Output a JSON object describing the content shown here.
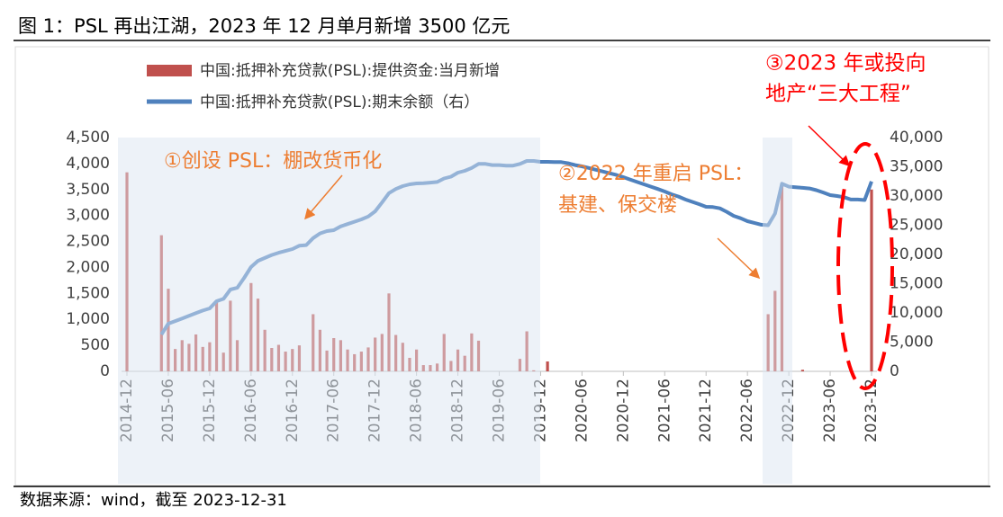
{
  "title": "图 1：PSL 再出江湖，2023 年 12 月单月新增 3500 亿元",
  "source": "数据来源：wind，截至 2023-12-31",
  "chart_data": {
    "type": "bar-line",
    "annotations": [
      "①创设 PSL：棚改货币化",
      "②2022 年重启 PSL：",
      "基建、保交楼",
      "③2023 年或投向",
      "地产“三大工程”"
    ],
    "categories": [
      "2014-12",
      null,
      null,
      null,
      null,
      null,
      "2015-06",
      null,
      null,
      null,
      null,
      null,
      "2015-12",
      null,
      null,
      null,
      null,
      null,
      "2016-06",
      null,
      null,
      null,
      null,
      null,
      "2016-12",
      null,
      null,
      null,
      null,
      null,
      "2017-06",
      null,
      null,
      null,
      null,
      null,
      "2017-12",
      null,
      null,
      null,
      null,
      null,
      "2018-06",
      null,
      null,
      null,
      null,
      null,
      "2018-12",
      null,
      null,
      null,
      null,
      null,
      "2019-06",
      null,
      null,
      null,
      null,
      null,
      "2019-12",
      null,
      null,
      null,
      null,
      null,
      "2020-06",
      null,
      null,
      null,
      null,
      null,
      "2020-12",
      null,
      null,
      null,
      null,
      null,
      "2021-06",
      null,
      null,
      null,
      null,
      null,
      "2021-12",
      null,
      null,
      null,
      null,
      null,
      "2022-06",
      null,
      null,
      null,
      null,
      null,
      "2022-12",
      null,
      null,
      null,
      null,
      null,
      "2023-06",
      null,
      null,
      null,
      null,
      null,
      "2023-12"
    ],
    "series": [
      {
        "name": "中国:抵押补充贷款(PSL):提供资金:当月新增",
        "color": "#c0504d",
        "values": [
          3831,
          0,
          0,
          0,
          0,
          2620,
          1590,
          430,
          600,
          530,
          710,
          470,
          560,
          1330,
          360,
          1360,
          600,
          0,
          1700,
          1400,
          800,
          450,
          510,
          380,
          430,
          500,
          0,
          1100,
          800,
          400,
          640,
          600,
          420,
          330,
          380,
          460,
          650,
          720,
          1500,
          700,
          550,
          260,
          420,
          120,
          120,
          150,
          720,
          200,
          420,
          300,
          730,
          590,
          0,
          0,
          0,
          0,
          0,
          240,
          770,
          20,
          0,
          190,
          0,
          0,
          0,
          0,
          0,
          0,
          0,
          0,
          0,
          0,
          0,
          0,
          0,
          0,
          0,
          0,
          0,
          0,
          0,
          0,
          0,
          0,
          0,
          0,
          0,
          0,
          0,
          0,
          0,
          0,
          0,
          1100,
          1550,
          3600,
          0,
          0,
          30,
          0,
          0,
          0,
          0,
          0,
          0,
          0,
          0,
          0,
          3500
        ]
      },
      {
        "name": "中国:抵押补充贷款(PSL):期末余额（右）",
        "color": "#4f81bd",
        "axis": "y2",
        "values": [
          null,
          null,
          null,
          null,
          null,
          6300,
          8150,
          8600,
          9050,
          9500,
          9950,
          10400,
          10770,
          12000,
          12400,
          14000,
          14300,
          16000,
          17850,
          18900,
          19400,
          19900,
          20300,
          20600,
          20920,
          21500,
          21600,
          22800,
          23600,
          24000,
          24150,
          24800,
          25200,
          25600,
          26000,
          26500,
          27380,
          28900,
          30500,
          31200,
          31700,
          32000,
          32150,
          32200,
          32300,
          32400,
          33000,
          33300,
          34000,
          34300,
          34800,
          35500,
          35500,
          35300,
          35300,
          35200,
          35200,
          35500,
          36000,
          36000,
          35850,
          35850,
          35800,
          35800,
          35600,
          35300,
          35080,
          34800,
          34500,
          34200,
          33900,
          33600,
          33230,
          32800,
          32400,
          32000,
          31600,
          31200,
          30770,
          30300,
          29900,
          29400,
          29000,
          28600,
          28150,
          28100,
          27900,
          27300,
          26600,
          26200,
          25700,
          25400,
          25100,
          25000,
          27000,
          32100,
          31600,
          31500,
          31400,
          31300,
          31000,
          30600,
          30150,
          30000,
          29800,
          29400,
          29400,
          29300,
          32500
        ]
      }
    ],
    "ylim": [
      0,
      4500
    ],
    "yticks": [
      0,
      500,
      {
        "value": 1000,
        "label": "1,000"
      },
      {
        "value": 1500,
        "label": "1,500"
      },
      {
        "value": 2000,
        "label": "2,000"
      },
      {
        "value": 2500,
        "label": "2,500"
      },
      {
        "value": 3000,
        "label": "3,000"
      },
      {
        "value": 3500,
        "label": "3,500"
      },
      {
        "value": 4000,
        "label": "4,000"
      },
      {
        "value": 4500,
        "label": "4,500"
      }
    ],
    "y2lim": [
      0,
      40000
    ],
    "y2ticks": [
      0,
      {
        "value": 5000,
        "label": "5,000"
      },
      {
        "value": 10000,
        "label": "10,000"
      },
      {
        "value": 15000,
        "label": "15,000"
      },
      {
        "value": 20000,
        "label": "20,000"
      },
      {
        "value": 25000,
        "label": "25,000"
      },
      {
        "value": 30000,
        "label": "30,000"
      },
      {
        "value": 35000,
        "label": "35,000"
      },
      {
        "value": 40000,
        "label": "40,000"
      }
    ]
  }
}
